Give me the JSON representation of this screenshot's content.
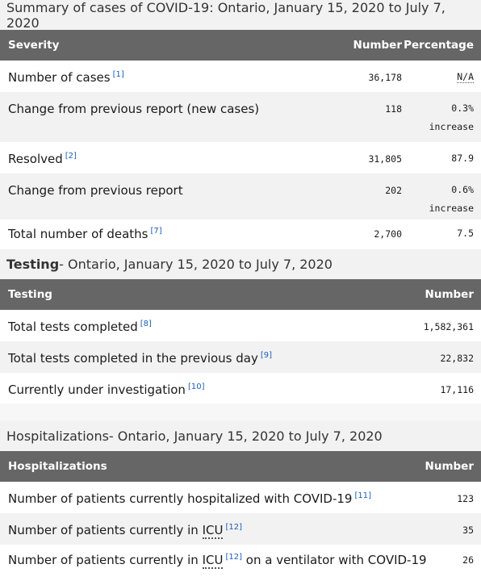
{
  "summary": {
    "caption": "Summary of cases of COVID-19: Ontario, January 15, 2020 to July 7, 2020",
    "headers": {
      "severity": "Severity",
      "number": "Number",
      "percentage": "Percentage"
    },
    "rows": [
      {
        "label": "Number of cases",
        "ref": "[1]",
        "number": "36,178",
        "pct": "N/A",
        "pct2": ""
      },
      {
        "label": "Change from previous report (new cases)",
        "ref": "",
        "number": "118",
        "pct": "0.3%",
        "pct2": "increase"
      },
      {
        "label": "Resolved",
        "ref": "[2]",
        "number": "31,805",
        "pct": "87.9",
        "pct2": ""
      },
      {
        "label": "Change from previous report",
        "ref": "",
        "number": "202",
        "pct": "0.6%",
        "pct2": "increase"
      },
      {
        "label": "Total number of deaths",
        "ref": "[7]",
        "number": "2,700",
        "pct": "7.5",
        "pct2": ""
      }
    ]
  },
  "testing": {
    "caption_bold": "Testing",
    "caption_rest": " - Ontario, January 15, 2020 to July 7, 2020",
    "headers": {
      "testing": "Testing",
      "number": "Number"
    },
    "rows": [
      {
        "label": "Total tests completed",
        "ref": "[8]",
        "number": "1,582,361"
      },
      {
        "label": "Total tests completed in the previous day",
        "ref": "[9]",
        "number": "22,832"
      },
      {
        "label": "Currently under investigation",
        "ref": "[10]",
        "number": "17,116"
      }
    ]
  },
  "hospital": {
    "caption_normal": "Hospitalizations",
    "caption_rest": " - Ontario, January 15, 2020 to July 7, 2020",
    "headers": {
      "hospitalizations": "Hospitalizations",
      "number": "Number"
    },
    "rows": [
      {
        "label": "Number of patients currently hospitalized with COVID-19",
        "ref": "[11]",
        "number": "123"
      },
      {
        "label_pre": "Number of patients currently in ",
        "abbr": "ICU",
        "ref": "[12]",
        "label_post": "",
        "number": "35"
      },
      {
        "label_pre": "Number of patients currently in ",
        "abbr": "ICU",
        "ref": "[12]",
        "label_post": " on a ventilator with COVID-19",
        "number": "26"
      }
    ]
  }
}
